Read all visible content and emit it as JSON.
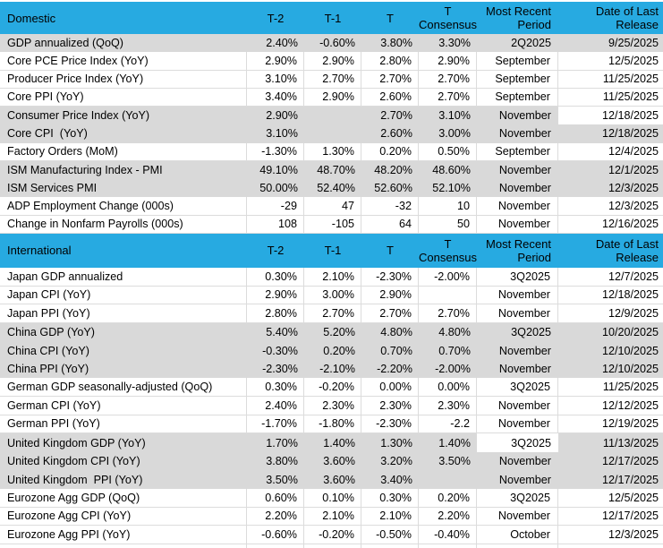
{
  "colors": {
    "header_bg": "#27aae1",
    "shaded_row_bg": "#d9d9d9",
    "grid_line": "#dcdcdc",
    "highlight_cell_bg": "#ffffff",
    "text": "#000000"
  },
  "columns": [
    {
      "id": "t2",
      "label": "T-2"
    },
    {
      "id": "t1",
      "label": "T-1"
    },
    {
      "id": "t",
      "label": "T"
    },
    {
      "id": "t-consensus",
      "label": "T Consensus",
      "lines": [
        "T",
        "Consensus"
      ]
    },
    {
      "id": "most-recent-period",
      "label": "Most Recent Period",
      "lines": [
        "Most Recent",
        "Period"
      ]
    },
    {
      "id": "date-of-last-release",
      "label": "Date of Last Release",
      "lines": [
        "Date of Last",
        "Release"
      ]
    }
  ],
  "sections": [
    {
      "label": "Domestic",
      "rows": [
        {
          "label": "GDP annualized (QoQ)",
          "values": [
            "2.40%",
            "-0.60%",
            "3.80%",
            "3.30%",
            "2Q2025",
            "9/25/2025"
          ],
          "shaded": true
        },
        {
          "label": "Core PCE Price Index (YoY)",
          "values": [
            "2.90%",
            "2.90%",
            "2.80%",
            "2.90%",
            "September",
            "12/5/2025"
          ],
          "shaded": false
        },
        {
          "label": "Producer Price Index (YoY)",
          "values": [
            "3.10%",
            "2.70%",
            "2.70%",
            "2.70%",
            "September",
            "11/25/2025"
          ],
          "shaded": false
        },
        {
          "label": "Core PPI (YoY)",
          "values": [
            "3.40%",
            "2.90%",
            "2.60%",
            "2.70%",
            "September",
            "11/25/2025"
          ],
          "shaded": false
        },
        {
          "label": "Consumer Price Index (YoY)",
          "values": [
            "2.90%",
            "",
            "2.70%",
            "3.10%",
            "November",
            "12/18/2025"
          ],
          "shaded": true,
          "white_cells": [
            5
          ]
        },
        {
          "label": "Core CPI  (YoY)",
          "values": [
            "3.10%",
            "",
            "2.60%",
            "3.00%",
            "November",
            "12/18/2025"
          ],
          "shaded": true
        },
        {
          "label": "Factory Orders (MoM)",
          "values": [
            "-1.30%",
            "1.30%",
            "0.20%",
            "0.50%",
            "September",
            "12/4/2025"
          ],
          "shaded": false
        },
        {
          "label": "ISM Manufacturing Index - PMI",
          "values": [
            "49.10%",
            "48.70%",
            "48.20%",
            "48.60%",
            "November",
            "12/1/2025"
          ],
          "shaded": true
        },
        {
          "label": "ISM Services PMI",
          "values": [
            "50.00%",
            "52.40%",
            "52.60%",
            "52.10%",
            "November",
            "12/3/2025"
          ],
          "shaded": true
        },
        {
          "label": "ADP Employment Change (000s)",
          "values": [
            "-29",
            "47",
            "-32",
            "10",
            "November",
            "12/3/2025"
          ],
          "shaded": false
        },
        {
          "label": "Change in Nonfarm Payrolls (000s)",
          "values": [
            "108",
            "-105",
            "64",
            "50",
            "November",
            "12/16/2025"
          ],
          "shaded": false
        }
      ]
    },
    {
      "label": "International",
      "rows": [
        {
          "label": "Japan GDP annualized",
          "values": [
            "0.30%",
            "2.10%",
            "-2.30%",
            "-2.00%",
            "3Q2025",
            "12/7/2025"
          ],
          "shaded": false
        },
        {
          "label": "Japan CPI (YoY)",
          "values": [
            "2.90%",
            "3.00%",
            "2.90%",
            "",
            "November",
            "12/18/2025"
          ],
          "shaded": false
        },
        {
          "label": "Japan PPI (YoY)",
          "values": [
            "2.80%",
            "2.70%",
            "2.70%",
            "2.70%",
            "November",
            "12/9/2025"
          ],
          "shaded": false
        },
        {
          "label": "China GDP (YoY)",
          "values": [
            "5.40%",
            "5.20%",
            "4.80%",
            "4.80%",
            "3Q2025",
            "10/20/2025"
          ],
          "shaded": true
        },
        {
          "label": "China CPI (YoY)",
          "values": [
            "-0.30%",
            "0.20%",
            "0.70%",
            "0.70%",
            "November",
            "12/10/2025"
          ],
          "shaded": true
        },
        {
          "label": "China PPI (YoY)",
          "values": [
            "-2.30%",
            "-2.10%",
            "-2.20%",
            "-2.00%",
            "November",
            "12/10/2025"
          ],
          "shaded": true
        },
        {
          "label": "German GDP seasonally-adjusted (QoQ)",
          "values": [
            "0.30%",
            "-0.20%",
            "0.00%",
            "0.00%",
            "3Q2025",
            "11/25/2025"
          ],
          "shaded": false
        },
        {
          "label": "German CPI (YoY)",
          "values": [
            "2.40%",
            "2.30%",
            "2.30%",
            "2.30%",
            "November",
            "12/12/2025"
          ],
          "shaded": false
        },
        {
          "label": "German PPI (YoY)",
          "values": [
            "-1.70%",
            "-1.80%",
            "-2.30%",
            "-2.2",
            "November",
            "12/19/2025"
          ],
          "shaded": false
        },
        {
          "label": "United Kingdom GDP (YoY)",
          "values": [
            "1.70%",
            "1.40%",
            "1.30%",
            "1.40%",
            "3Q2025",
            "11/13/2025"
          ],
          "shaded": true,
          "white_cells": [
            4
          ]
        },
        {
          "label": "United Kingdom CPI (YoY)",
          "values": [
            "3.80%",
            "3.60%",
            "3.20%",
            "3.50%",
            "November",
            "12/17/2025"
          ],
          "shaded": true
        },
        {
          "label": "United Kingdom  PPI (YoY)",
          "values": [
            "3.50%",
            "3.60%",
            "3.40%",
            "",
            "November",
            "12/17/2025"
          ],
          "shaded": true
        },
        {
          "label": "Eurozone Agg GDP (QoQ)",
          "values": [
            "0.60%",
            "0.10%",
            "0.30%",
            "0.20%",
            "3Q2025",
            "12/5/2025"
          ],
          "shaded": false
        },
        {
          "label": "Eurozone Agg CPI (YoY)",
          "values": [
            "2.20%",
            "2.10%",
            "2.10%",
            "2.20%",
            "November",
            "12/17/2025"
          ],
          "shaded": false
        },
        {
          "label": "Eurozone Agg PPI (YoY)",
          "values": [
            "-0.60%",
            "-0.20%",
            "-0.50%",
            "-0.40%",
            "October",
            "12/3/2025"
          ],
          "shaded": false
        }
      ]
    }
  ]
}
